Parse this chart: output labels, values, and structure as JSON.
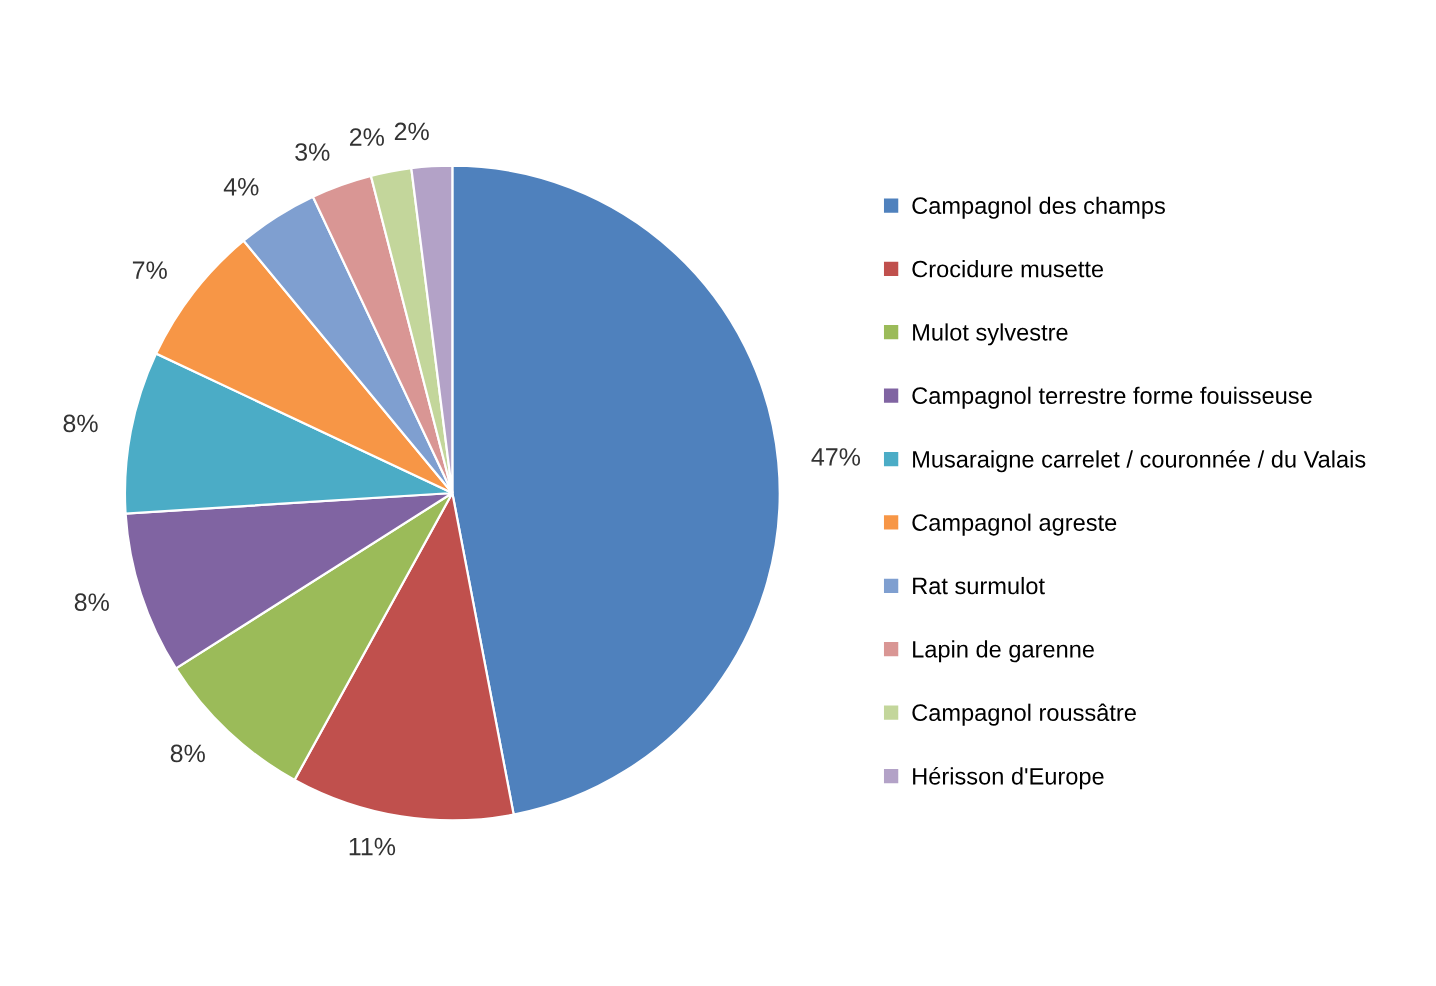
{
  "chart_data": {
    "type": "pie",
    "categories": [
      "Campagnol des champs",
      "Crocidure musette",
      "Mulot sylvestre",
      "Campagnol terrestre forme fouisseuse",
      "Musaraigne carrelet / couronnée / du Valais",
      "Campagnol agreste",
      "Rat surmulot",
      "Lapin de garenne",
      "Campagnol roussâtre",
      "Hérisson d'Europe"
    ],
    "values": [
      47,
      11,
      8,
      8,
      8,
      7,
      4,
      3,
      2,
      2
    ],
    "value_labels": [
      "47%",
      "11%",
      "8%",
      "8%",
      "8%",
      "7%",
      "4%",
      "3%",
      "2%",
      "2%"
    ],
    "colors": [
      "#4f81bd",
      "#c0504d",
      "#9bbb59",
      "#8064a2",
      "#4bacc6",
      "#f79646",
      "#7f9fd0",
      "#d99694",
      "#c3d69b",
      "#b3a2c7"
    ],
    "legend": "right"
  }
}
